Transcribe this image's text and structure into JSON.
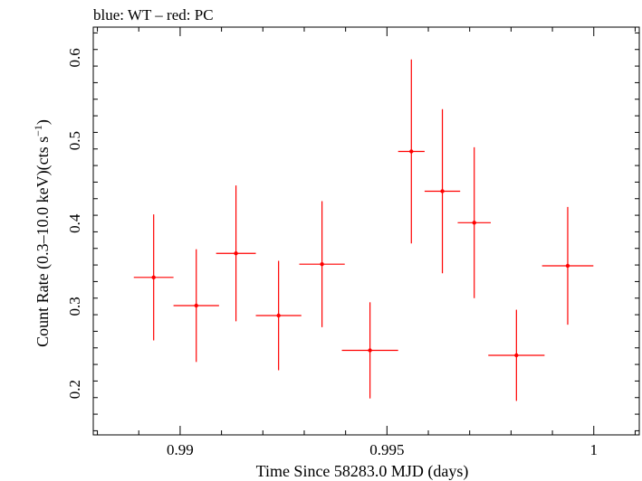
{
  "chart_data": {
    "type": "scatter",
    "title": "blue: WT – red: PC",
    "xlabel": "Time Since 58283.0 MJD (days)",
    "ylabel_main": "Count Rate (0.3–10.0 keV)(cts s",
    "ylabel_sup": "−1",
    "ylabel_end": ")",
    "xlim": [
      0.9879,
      1.0011
    ],
    "ylim": [
      0.145,
      0.637
    ],
    "x_ticks": [
      0.99,
      0.995,
      1.0
    ],
    "x_tick_labels": [
      "0.99",
      "0.995",
      "1"
    ],
    "y_ticks": [
      0.2,
      0.3,
      0.4,
      0.5,
      0.6
    ],
    "y_tick_labels": [
      "0.2",
      "0.3",
      "0.4",
      "0.5",
      "0.6"
    ],
    "series": [
      {
        "color": "#ff0000",
        "points": [
          {
            "x": 0.98936,
            "xerr": 0.00048,
            "y": 0.335,
            "yerr_low": 0.076,
            "yerr_high": 0.076
          },
          {
            "x": 0.99039,
            "xerr": 0.00055,
            "y": 0.301,
            "yerr_low": 0.068,
            "yerr_high": 0.068
          },
          {
            "x": 0.99135,
            "xerr": 0.00048,
            "y": 0.364,
            "yerr_low": 0.082,
            "yerr_high": 0.082
          },
          {
            "x": 0.99238,
            "xerr": 0.00055,
            "y": 0.289,
            "yerr_low": 0.066,
            "yerr_high": 0.066
          },
          {
            "x": 0.99343,
            "xerr": 0.00055,
            "y": 0.351,
            "yerr_low": 0.076,
            "yerr_high": 0.076
          },
          {
            "x": 0.99459,
            "xerr": 0.00068,
            "y": 0.247,
            "yerr_low": 0.058,
            "yerr_high": 0.058
          },
          {
            "x": 0.99559,
            "xerr": 0.00032,
            "y": 0.487,
            "yerr_low": 0.111,
            "yerr_high": 0.111
          },
          {
            "x": 0.99634,
            "xerr": 0.00043,
            "y": 0.439,
            "yerr_low": 0.099,
            "yerr_high": 0.099
          },
          {
            "x": 0.99711,
            "xerr": 0.0004,
            "y": 0.401,
            "yerr_low": 0.091,
            "yerr_high": 0.091
          },
          {
            "x": 0.99813,
            "xerr": 0.00068,
            "y": 0.241,
            "yerr_low": 0.055,
            "yerr_high": 0.055
          },
          {
            "x": 0.99937,
            "xerr": 0.00062,
            "y": 0.349,
            "yerr_low": 0.071,
            "yerr_high": 0.071
          }
        ]
      }
    ]
  }
}
